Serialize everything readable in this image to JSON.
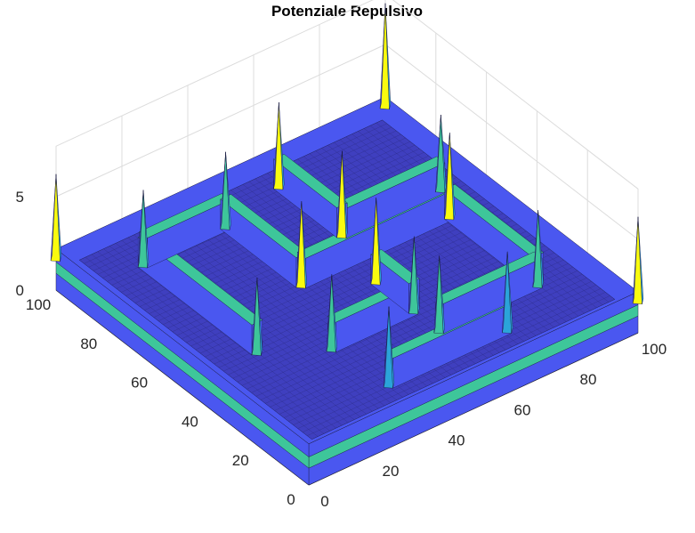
{
  "chart_data": {
    "type": "surface",
    "title": "Potenziale Repulsivo",
    "xlabel": "",
    "ylabel": "",
    "zlabel": "",
    "xlim": [
      0,
      100
    ],
    "ylim": [
      0,
      100
    ],
    "zlim": [
      0,
      5
    ],
    "x_ticks": [
      0,
      20,
      40,
      60,
      80,
      100
    ],
    "y_ticks": [
      0,
      20,
      40,
      60,
      80,
      100
    ],
    "z_ticks": [
      0,
      5
    ],
    "grid": true,
    "colormap": "parula",
    "colors": {
      "low": "#3e26a8",
      "mid_low": "#4a57f0",
      "mid": "#2ba4d9",
      "mid_high": "#3ec69a",
      "high": "#f9fb0e"
    },
    "surface": {
      "description_of_levels": "border plateau and wall ridges with spikes",
      "border_wall_height": 2.2,
      "walls": [
        {
          "x": [
            32,
            68
          ],
          "y": [
            10,
            10
          ]
        },
        {
          "x": [
            15,
            15
          ],
          "y": [
            40,
            85
          ]
        },
        {
          "x": [
            15,
            40
          ],
          "y": [
            85,
            85
          ]
        },
        {
          "x": [
            40,
            40
          ],
          "y": [
            55,
            85
          ]
        },
        {
          "x": [
            40,
            85
          ],
          "y": [
            55,
            55
          ]
        },
        {
          "x": [
            85,
            85
          ],
          "y": [
            20,
            55
          ]
        },
        {
          "x": [
            55,
            85
          ],
          "y": [
            20,
            20
          ]
        },
        {
          "x": [
            30,
            55
          ],
          "y": [
            30,
            30
          ]
        },
        {
          "x": [
            55,
            55
          ],
          "y": [
            30,
            45
          ]
        },
        {
          "x": [
            60,
            90
          ],
          "y": [
            65,
            65
          ]
        },
        {
          "x": [
            60,
            60
          ],
          "y": [
            65,
            90
          ]
        }
      ],
      "wall_height": 1.6,
      "spikes": [
        {
          "x": 100,
          "y": 100,
          "z": 5.5
        },
        {
          "x": 0,
          "y": 100,
          "z": 4.5
        },
        {
          "x": 100,
          "y": 0,
          "z": 4.5
        },
        {
          "x": 32,
          "y": 10,
          "z": 4.2
        },
        {
          "x": 68,
          "y": 10,
          "z": 4.2
        },
        {
          "x": 15,
          "y": 40,
          "z": 4.0
        },
        {
          "x": 15,
          "y": 85,
          "z": 4.0
        },
        {
          "x": 40,
          "y": 85,
          "z": 4.0
        },
        {
          "x": 40,
          "y": 55,
          "z": 4.5
        },
        {
          "x": 85,
          "y": 55,
          "z": 4.5
        },
        {
          "x": 85,
          "y": 20,
          "z": 4.0
        },
        {
          "x": 55,
          "y": 20,
          "z": 4.0
        },
        {
          "x": 30,
          "y": 30,
          "z": 4.0
        },
        {
          "x": 55,
          "y": 30,
          "z": 4.0
        },
        {
          "x": 55,
          "y": 45,
          "z": 4.5
        },
        {
          "x": 60,
          "y": 65,
          "z": 4.5
        },
        {
          "x": 90,
          "y": 65,
          "z": 4.0
        },
        {
          "x": 60,
          "y": 90,
          "z": 4.5
        }
      ]
    }
  }
}
